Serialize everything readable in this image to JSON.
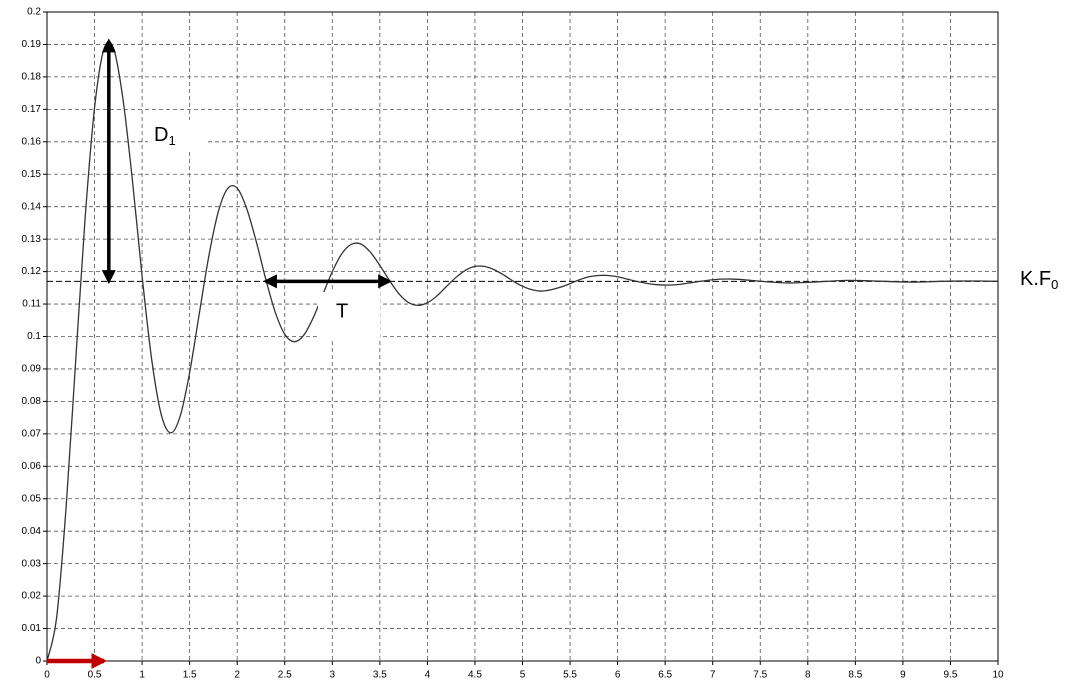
{
  "chart_data": {
    "type": "line",
    "x": [
      0,
      0.1,
      0.2,
      0.3,
      0.4,
      0.5,
      0.6,
      0.7,
      0.8,
      0.9,
      1.0,
      1.1,
      1.2,
      1.3,
      1.4,
      1.5,
      1.6,
      1.7,
      1.8,
      1.9,
      2.0,
      2.1,
      2.2,
      2.3,
      2.4,
      2.5,
      2.6,
      2.7,
      2.8,
      2.9,
      3.0,
      3.1,
      3.2,
      3.3,
      3.4,
      3.5,
      3.6,
      3.7,
      3.8,
      3.9,
      4.0,
      4.1,
      4.2,
      4.3,
      4.4,
      4.5,
      4.6,
      4.7,
      4.8,
      4.9,
      5.0,
      5.1,
      5.2,
      5.3,
      5.4,
      5.5,
      5.6,
      5.7,
      5.8,
      5.9,
      6.0,
      6.2,
      6.4,
      6.6,
      6.8,
      7.0,
      7.2,
      7.4,
      7.6,
      7.8,
      8.0,
      8.2,
      8.4,
      8.6,
      8.8,
      9.0,
      9.2,
      9.4,
      9.6,
      9.8,
      10.0
    ],
    "values": [
      0,
      0.0131,
      0.047,
      0.0918,
      0.1361,
      0.1705,
      0.1887,
      0.1888,
      0.1729,
      0.1476,
      0.1186,
      0.0931,
      0.0761,
      0.0703,
      0.0754,
      0.0889,
      0.1068,
      0.1245,
      0.1383,
      0.1456,
      0.1457,
      0.1394,
      0.1293,
      0.1177,
      0.1075,
      0.1007,
      0.0984,
      0.1004,
      0.1058,
      0.1129,
      0.12,
      0.1255,
      0.1284,
      0.1285,
      0.126,
      0.1219,
      0.1173,
      0.1132,
      0.1105,
      0.1096,
      0.1104,
      0.1125,
      0.1154,
      0.1182,
      0.1204,
      0.1216,
      0.1216,
      0.1206,
      0.119,
      0.1171,
      0.1155,
      0.1144,
      0.114,
      0.1144,
      0.1152,
      0.1163,
      0.1175,
      0.1184,
      0.1188,
      0.1188,
      0.1184,
      0.117,
      0.116,
      0.1159,
      0.1167,
      0.1175,
      0.1177,
      0.1173,
      0.1168,
      0.1165,
      0.1167,
      0.117,
      0.1173,
      0.1172,
      0.117,
      0.1168,
      0.1168,
      0.117,
      0.1171,
      0.1171,
      0.117
    ],
    "color": "#333333",
    "xlim": [
      0,
      10
    ],
    "ylim": [
      0,
      0.2
    ],
    "xticks": [
      0,
      0.5,
      1,
      1.5,
      2,
      2.5,
      3,
      3.5,
      4,
      4.5,
      5,
      5.5,
      6,
      6.5,
      7,
      7.5,
      8,
      8.5,
      9,
      9.5,
      10
    ],
    "yticks": [
      0,
      0.01,
      0.02,
      0.03,
      0.04,
      0.05,
      0.06,
      0.07,
      0.08,
      0.09,
      0.1,
      0.11,
      0.12,
      0.13,
      0.14,
      0.15,
      0.16,
      0.17,
      0.18,
      0.19,
      0.2
    ],
    "grid": true,
    "reference_line": 0.117,
    "annotations": {
      "d1": {
        "text": "D",
        "subscript": "1",
        "arrow_x": 0.65,
        "arrow_y": [
          0.117,
          0.191
        ]
      },
      "t": {
        "text": "T",
        "arrow_x": [
          2.3,
          3.6
        ],
        "arrow_y": 0.117
      },
      "kf0": {
        "text": "K.F",
        "subscript": "0"
      },
      "input": {
        "arrow_x": [
          0,
          0.6
        ],
        "arrow_y": 0,
        "color": "#c00000"
      }
    }
  }
}
